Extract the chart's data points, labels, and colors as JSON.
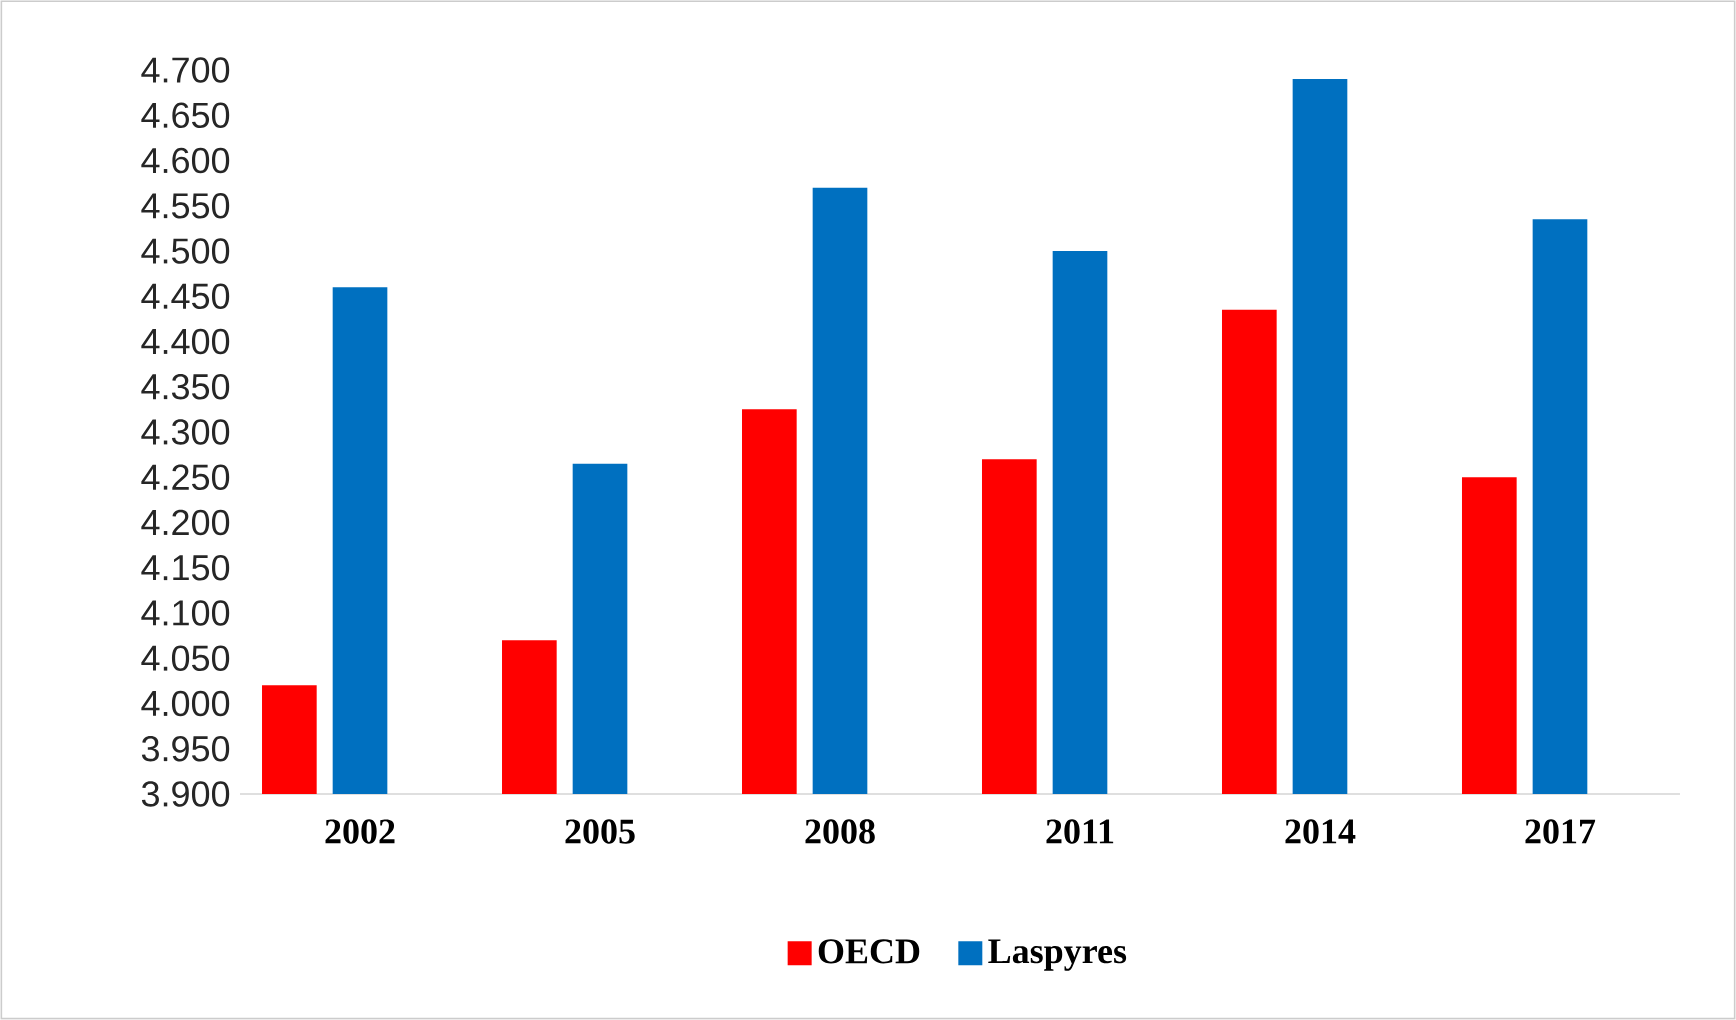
{
  "chart_data": {
    "type": "bar",
    "categories": [
      "2002",
      "2005",
      "2008",
      "2011",
      "2014",
      "2017"
    ],
    "series": [
      {
        "name": "OECD",
        "color": "#ff0000",
        "values": [
          4.02,
          4.07,
          4.325,
          4.27,
          4.435,
          4.25
        ]
      },
      {
        "name": "Laspyres",
        "color": "#0070c0",
        "values": [
          4.46,
          4.265,
          4.57,
          4.5,
          4.69,
          4.535
        ]
      }
    ],
    "ylim": [
      3.9,
      4.7
    ],
    "yticks": [
      {
        "value": 3.9,
        "label": "3.900"
      },
      {
        "value": 3.95,
        "label": "3.950"
      },
      {
        "value": 4.0,
        "label": "4.000"
      },
      {
        "value": 4.05,
        "label": "4.050"
      },
      {
        "value": 4.1,
        "label": "4.100"
      },
      {
        "value": 4.15,
        "label": "4.150"
      },
      {
        "value": 4.2,
        "label": "4.200"
      },
      {
        "value": 4.25,
        "label": "4.250"
      },
      {
        "value": 4.3,
        "label": "4.300"
      },
      {
        "value": 4.35,
        "label": "4.350"
      },
      {
        "value": 4.4,
        "label": "4.400"
      },
      {
        "value": 4.45,
        "label": "4.450"
      },
      {
        "value": 4.5,
        "label": "4.500"
      },
      {
        "value": 4.55,
        "label": "4.550"
      },
      {
        "value": 4.6,
        "label": "4.600"
      },
      {
        "value": 4.65,
        "label": "4.650"
      },
      {
        "value": 4.7,
        "label": "4.700"
      }
    ],
    "legend": "bottom"
  }
}
